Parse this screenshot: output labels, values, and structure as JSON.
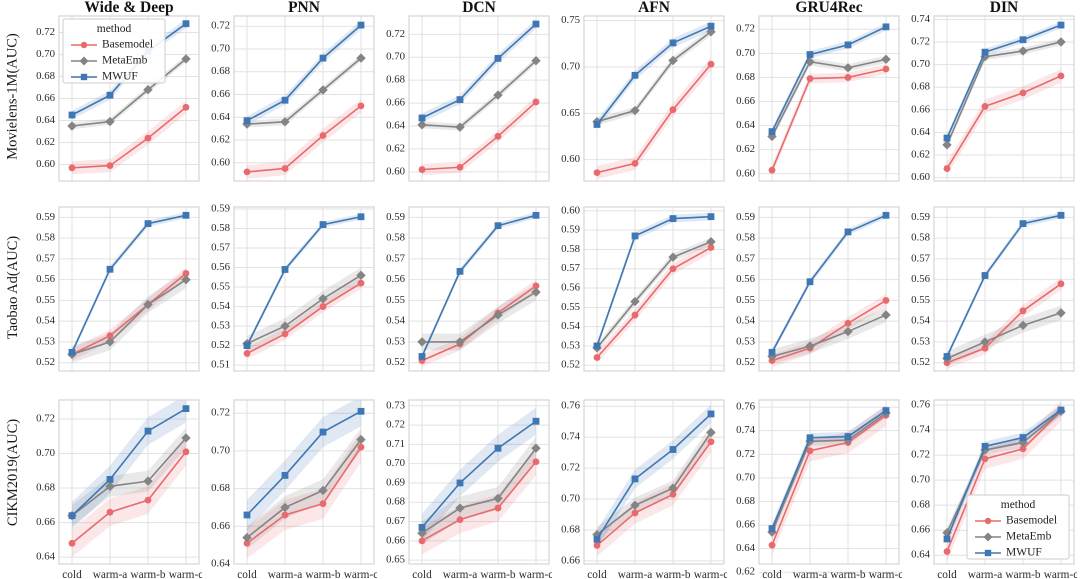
{
  "figure_title": "",
  "chart_data": {
    "type": "line",
    "x_categories": [
      "cold",
      "warm-a",
      "warm-b",
      "warm-c"
    ],
    "legend": {
      "title": "method",
      "position_top_left_chart": "row 1, Wide & Deep (upper-left inside plot)",
      "position_bottom_right_chart": "row 3, DIN (lower-right inside plot)"
    },
    "methods": [
      {
        "name": "Basemodel",
        "color": "#e96a6d",
        "band_color": "rgba(233,106,109,0.16)",
        "marker": "circle"
      },
      {
        "name": "MetaEmb",
        "color": "#848484",
        "band_color": "rgba(132,132,132,0.18)",
        "marker": "diamond"
      },
      {
        "name": "MWUF",
        "color": "#3f76b4",
        "band_color": "rgba(63,118,180,0.16)",
        "marker": "square"
      }
    ],
    "grid": true,
    "rows": [
      {
        "label": "Movielens-1M(AUC)",
        "charts": [
          {
            "title": "Wide & Deep",
            "legend": "upper-left",
            "yticks": [
              0.6,
              0.62,
              0.64,
              0.66,
              0.68,
              0.7,
              0.72
            ],
            "ylim": [
              0.585,
              0.735
            ],
            "series": [
              [
                0.597,
                0.599,
                0.624,
                0.652
              ],
              [
                0.635,
                0.639,
                0.668,
                0.696
              ],
              [
                0.645,
                0.663,
                0.703,
                0.728
              ]
            ],
            "bands": [
              0.006,
              0.003,
              0.004
            ]
          },
          {
            "title": "PNN",
            "legend": null,
            "yticks": [
              0.6,
              0.62,
              0.64,
              0.66,
              0.68,
              0.7,
              0.72
            ],
            "ylim": [
              0.584,
              0.729
            ],
            "series": [
              [
                0.592,
                0.595,
                0.624,
                0.65
              ],
              [
                0.634,
                0.636,
                0.664,
                0.692
              ],
              [
                0.637,
                0.655,
                0.692,
                0.721
              ]
            ],
            "bands": [
              0.006,
              0.003,
              0.004
            ]
          },
          {
            "title": "DCN",
            "legend": null,
            "yticks": [
              0.6,
              0.62,
              0.64,
              0.66,
              0.68,
              0.7,
              0.72
            ],
            "ylim": [
              0.592,
              0.736
            ],
            "series": [
              [
                0.602,
                0.604,
                0.631,
                0.661
              ],
              [
                0.641,
                0.639,
                0.667,
                0.697
              ],
              [
                0.647,
                0.663,
                0.699,
                0.729
              ]
            ],
            "bands": [
              0.005,
              0.003,
              0.004
            ]
          },
          {
            "title": "AFN",
            "legend": null,
            "yticks": [
              0.6,
              0.65,
              0.7,
              0.75
            ],
            "ylim": [
              0.577,
              0.755
            ],
            "series": [
              [
                0.586,
                0.596,
                0.654,
                0.703
              ],
              [
                0.641,
                0.653,
                0.707,
                0.738
              ],
              [
                0.638,
                0.691,
                0.726,
                0.744
              ]
            ],
            "bands": [
              0.007,
              0.004,
              0.005
            ]
          },
          {
            "title": "GRU4Rec",
            "legend": null,
            "yticks": [
              0.6,
              0.62,
              0.64,
              0.66,
              0.68,
              0.7,
              0.72
            ],
            "ylim": [
              0.594,
              0.731
            ],
            "series": [
              [
                0.603,
                0.679,
                0.68,
                0.687
              ],
              [
                0.631,
                0.693,
                0.688,
                0.695
              ],
              [
                0.635,
                0.699,
                0.707,
                0.722
              ]
            ],
            "bands": [
              0.004,
              0.003,
              0.003
            ]
          },
          {
            "title": "DIN",
            "legend": null,
            "yticks": [
              0.6,
              0.62,
              0.64,
              0.66,
              0.68,
              0.7,
              0.72,
              0.74
            ],
            "ylim": [
              0.597,
              0.743
            ],
            "series": [
              [
                0.608,
                0.663,
                0.675,
                0.69
              ],
              [
                0.629,
                0.707,
                0.712,
                0.72
              ],
              [
                0.635,
                0.711,
                0.722,
                0.735
              ]
            ],
            "bands": [
              0.006,
              0.003,
              0.003
            ]
          }
        ]
      },
      {
        "label": "Taobao Ad(AUC)",
        "charts": [
          {
            "title": null,
            "legend": null,
            "yticks": [
              0.52,
              0.53,
              0.54,
              0.55,
              0.56,
              0.57,
              0.58,
              0.59
            ],
            "ylim": [
              0.516,
              0.595
            ],
            "series": [
              [
                0.524,
                0.533,
                0.548,
                0.563
              ],
              [
                0.524,
                0.53,
                0.548,
                0.56
              ],
              [
                0.525,
                0.565,
                0.587,
                0.591
              ]
            ],
            "bands": [
              0.003,
              0.004,
              0.0015
            ]
          },
          {
            "title": null,
            "legend": null,
            "yticks": [
              0.51,
              0.52,
              0.53,
              0.54,
              0.55,
              0.56,
              0.57,
              0.58,
              0.59
            ],
            "ylim": [
              0.507,
              0.591
            ],
            "series": [
              [
                0.516,
                0.526,
                0.54,
                0.552
              ],
              [
                0.521,
                0.53,
                0.544,
                0.556
              ],
              [
                0.52,
                0.559,
                0.582,
                0.586
              ]
            ],
            "bands": [
              0.003,
              0.004,
              0.0015
            ]
          },
          {
            "title": null,
            "legend": null,
            "yticks": [
              0.52,
              0.53,
              0.54,
              0.55,
              0.56,
              0.57,
              0.58,
              0.59
            ],
            "ylim": [
              0.516,
              0.595
            ],
            "series": [
              [
                0.521,
                0.529,
                0.544,
                0.557
              ],
              [
                0.53,
                0.53,
                0.543,
                0.554
              ],
              [
                0.523,
                0.564,
                0.586,
                0.591
              ]
            ],
            "bands": [
              0.003,
              0.004,
              0.0015
            ]
          },
          {
            "title": null,
            "legend": null,
            "yticks": [
              0.52,
              0.53,
              0.54,
              0.55,
              0.56,
              0.57,
              0.58,
              0.59,
              0.6
            ],
            "ylim": [
              0.517,
              0.602
            ],
            "series": [
              [
                0.524,
                0.546,
                0.57,
                0.581
              ],
              [
                0.529,
                0.553,
                0.576,
                0.584
              ],
              [
                0.53,
                0.587,
                0.596,
                0.597
              ]
            ],
            "bands": [
              0.003,
              0.002,
              0.002
            ]
          },
          {
            "title": null,
            "legend": null,
            "yticks": [
              0.52,
              0.53,
              0.54,
              0.55,
              0.56,
              0.57,
              0.58,
              0.59
            ],
            "ylim": [
              0.516,
              0.595
            ],
            "series": [
              [
                0.521,
                0.527,
                0.539,
                0.55
              ],
              [
                0.523,
                0.528,
                0.535,
                0.543
              ],
              [
                0.525,
                0.559,
                0.583,
                0.591
              ]
            ],
            "bands": [
              0.003,
              0.0035,
              0.0015
            ]
          },
          {
            "title": null,
            "legend": null,
            "yticks": [
              0.52,
              0.53,
              0.54,
              0.55,
              0.56,
              0.57,
              0.58,
              0.59
            ],
            "ylim": [
              0.516,
              0.595
            ],
            "series": [
              [
                0.52,
                0.527,
                0.545,
                0.558
              ],
              [
                0.522,
                0.53,
                0.538,
                0.544
              ],
              [
                0.523,
                0.562,
                0.587,
                0.591
              ]
            ],
            "bands": [
              0.003,
              0.0035,
              0.0015
            ]
          }
        ]
      },
      {
        "label": "CIKM2019(AUC)",
        "charts": [
          {
            "title": null,
            "legend": null,
            "yticks": [
              0.64,
              0.66,
              0.68,
              0.7,
              0.72
            ],
            "ylim": [
              0.636,
              0.731
            ],
            "series": [
              [
                0.648,
                0.666,
                0.673,
                0.701
              ],
              [
                0.664,
                0.681,
                0.684,
                0.709
              ],
              [
                0.664,
                0.685,
                0.713,
                0.726
              ]
            ],
            "bands": [
              0.008,
              0.006,
              0.008
            ]
          },
          {
            "title": null,
            "legend": null,
            "yticks": [
              0.64,
              0.66,
              0.68,
              0.7,
              0.72
            ],
            "ylim": [
              0.64,
              0.727
            ],
            "series": [
              [
                0.651,
                0.666,
                0.672,
                0.702
              ],
              [
                0.654,
                0.67,
                0.679,
                0.706
              ],
              [
                0.666,
                0.687,
                0.71,
                0.721
              ]
            ],
            "bands": [
              0.008,
              0.006,
              0.008
            ]
          },
          {
            "title": null,
            "legend": null,
            "yticks": [
              0.65,
              0.66,
              0.67,
              0.68,
              0.69,
              0.7,
              0.71,
              0.72,
              0.73
            ],
            "ylim": [
              0.648,
              0.733
            ],
            "series": [
              [
                0.66,
                0.671,
                0.677,
                0.701
              ],
              [
                0.664,
                0.677,
                0.682,
                0.708
              ],
              [
                0.667,
                0.69,
                0.708,
                0.722
              ]
            ],
            "bands": [
              0.007,
              0.006,
              0.007
            ]
          },
          {
            "title": null,
            "legend": null,
            "yticks": [
              0.66,
              0.68,
              0.7,
              0.72,
              0.74,
              0.76
            ],
            "ylim": [
              0.658,
              0.764
            ],
            "series": [
              [
                0.67,
                0.691,
                0.703,
                0.737
              ],
              [
                0.677,
                0.696,
                0.707,
                0.743
              ],
              [
                0.674,
                0.713,
                0.732,
                0.755
              ]
            ],
            "bands": [
              0.007,
              0.005,
              0.006
            ]
          },
          {
            "title": null,
            "legend": null,
            "yticks": [
              0.62,
              0.64,
              0.66,
              0.68,
              0.7,
              0.72,
              0.74,
              0.76
            ],
            "ylim": [
              0.627,
              0.766
            ],
            "series": [
              [
                0.643,
                0.723,
                0.73,
                0.753
              ],
              [
                0.654,
                0.731,
                0.732,
                0.755
              ],
              [
                0.657,
                0.734,
                0.735,
                0.757
              ]
            ],
            "bands": [
              0.009,
              0.004,
              0.004
            ]
          },
          {
            "title": null,
            "legend": "lower-right",
            "yticks": [
              0.64,
              0.66,
              0.68,
              0.7,
              0.72,
              0.74,
              0.76
            ],
            "ylim": [
              0.633,
              0.764
            ],
            "series": [
              [
                0.643,
                0.717,
                0.725,
                0.755
              ],
              [
                0.658,
                0.724,
                0.73,
                0.755
              ],
              [
                0.653,
                0.727,
                0.734,
                0.756
              ]
            ],
            "bands": [
              0.008,
              0.004,
              0.004
            ]
          }
        ]
      }
    ],
    "xlabel": "",
    "ylabel_rows": [
      "Movielens-1M(AUC)",
      "Taobao Ad(AUC)",
      "CIKM2019(AUC)"
    ],
    "legend_labels": [
      "Basemodel",
      "MetaEmb",
      "MWUF"
    ],
    "legend_title": "method"
  },
  "style_colors": {
    "grid": "#e2e2e2",
    "plot_border": "#d4d4d4",
    "tick_text": "#2b2b2b",
    "title_text": "#111111",
    "legend_border": "#cccccc"
  }
}
